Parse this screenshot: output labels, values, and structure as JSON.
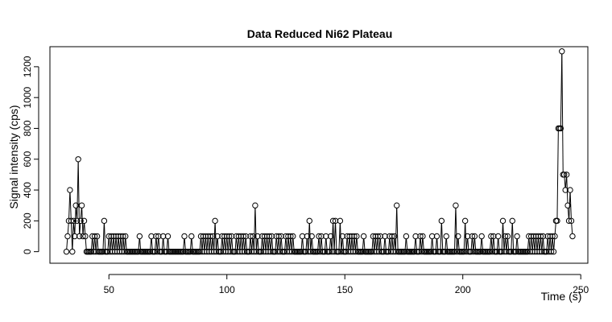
{
  "chart_data": {
    "type": "scatter",
    "title": "Data Reduced Ni62 Plateau",
    "xlabel": "Time (s)",
    "ylabel": "Signal intensity (cps)",
    "xlim": [
      25,
      253
    ],
    "ylim": [
      -75,
      1330
    ],
    "x_ticks": [
      50,
      100,
      150,
      200,
      250
    ],
    "x_tick_labels": [
      "50",
      "100",
      "150",
      "200",
      "250"
    ],
    "y_ticks": [
      0,
      200,
      400,
      600,
      800,
      1000,
      1200
    ],
    "y_tick_labels": [
      "0",
      "200",
      "400",
      "600",
      "800",
      "1000",
      "1200"
    ],
    "grid": false,
    "style": "points with vertical lines (type='b' style trace)",
    "series": [
      {
        "color": "#000000",
        "x_start": 32,
        "x_step": 0.5,
        "baseline_value": 0,
        "end_x": 246.5,
        "peaks": [
          [
            32,
            0
          ],
          [
            32.5,
            100
          ],
          [
            33,
            200
          ],
          [
            33.5,
            400
          ],
          [
            34,
            200
          ],
          [
            34.5,
            0
          ],
          [
            35,
            200
          ],
          [
            35.5,
            100
          ],
          [
            36,
            300
          ],
          [
            36.5,
            200
          ],
          [
            37,
            600
          ],
          [
            37.5,
            100
          ],
          [
            38,
            200
          ],
          [
            38.5,
            300
          ],
          [
            39,
            100
          ],
          [
            39.5,
            200
          ],
          [
            40,
            100
          ],
          [
            40.5,
            0
          ],
          [
            43,
            100
          ],
          [
            44,
            100
          ],
          [
            45,
            100
          ],
          [
            48,
            200
          ],
          [
            50,
            100
          ],
          [
            51,
            100
          ],
          [
            52,
            100
          ],
          [
            53,
            100
          ],
          [
            54,
            100
          ],
          [
            55,
            100
          ],
          [
            56,
            100
          ],
          [
            57,
            100
          ],
          [
            63,
            100
          ],
          [
            68,
            100
          ],
          [
            70,
            100
          ],
          [
            71,
            100
          ],
          [
            73,
            100
          ],
          [
            75,
            100
          ],
          [
            82,
            100
          ],
          [
            85,
            100
          ],
          [
            89,
            100
          ],
          [
            90,
            100
          ],
          [
            91,
            100
          ],
          [
            92,
            100
          ],
          [
            93,
            100
          ],
          [
            94,
            100
          ],
          [
            95,
            200
          ],
          [
            96,
            100
          ],
          [
            98,
            100
          ],
          [
            99,
            100
          ],
          [
            100,
            100
          ],
          [
            101,
            100
          ],
          [
            102,
            100
          ],
          [
            104,
            100
          ],
          [
            105,
            100
          ],
          [
            106,
            100
          ],
          [
            107,
            100
          ],
          [
            108,
            100
          ],
          [
            110,
            100
          ],
          [
            111,
            100
          ],
          [
            112,
            300
          ],
          [
            113,
            100
          ],
          [
            115,
            100
          ],
          [
            116,
            100
          ],
          [
            117,
            100
          ],
          [
            118,
            100
          ],
          [
            119,
            100
          ],
          [
            121,
            100
          ],
          [
            122,
            100
          ],
          [
            123,
            100
          ],
          [
            125,
            100
          ],
          [
            126,
            100
          ],
          [
            127,
            100
          ],
          [
            128,
            100
          ],
          [
            132,
            100
          ],
          [
            134,
            100
          ],
          [
            135,
            200
          ],
          [
            136,
            100
          ],
          [
            139,
            100
          ],
          [
            140,
            100
          ],
          [
            142,
            100
          ],
          [
            144,
            100
          ],
          [
            145,
            200
          ],
          [
            146,
            200
          ],
          [
            148,
            200
          ],
          [
            149,
            100
          ],
          [
            151,
            100
          ],
          [
            152,
            100
          ],
          [
            153,
            100
          ],
          [
            154,
            100
          ],
          [
            155,
            100
          ],
          [
            158,
            100
          ],
          [
            162,
            100
          ],
          [
            163,
            100
          ],
          [
            164,
            100
          ],
          [
            165,
            100
          ],
          [
            167,
            100
          ],
          [
            169,
            100
          ],
          [
            170,
            100
          ],
          [
            171,
            100
          ],
          [
            172,
            300
          ],
          [
            176,
            100
          ],
          [
            180,
            100
          ],
          [
            182,
            100
          ],
          [
            183,
            100
          ],
          [
            187,
            100
          ],
          [
            189,
            100
          ],
          [
            191,
            200
          ],
          [
            193,
            100
          ],
          [
            197,
            300
          ],
          [
            198,
            100
          ],
          [
            201,
            200
          ],
          [
            202,
            100
          ],
          [
            204,
            100
          ],
          [
            205,
            100
          ],
          [
            208,
            100
          ],
          [
            212,
            100
          ],
          [
            213,
            100
          ],
          [
            215,
            100
          ],
          [
            217,
            200
          ],
          [
            218,
            100
          ],
          [
            219,
            100
          ],
          [
            221,
            200
          ],
          [
            223,
            100
          ],
          [
            228,
            100
          ],
          [
            229,
            100
          ],
          [
            230,
            100
          ],
          [
            231,
            100
          ],
          [
            232,
            100
          ],
          [
            233,
            100
          ],
          [
            234,
            100
          ],
          [
            236,
            100
          ],
          [
            237,
            100
          ],
          [
            238,
            100
          ],
          [
            239,
            100
          ],
          [
            239.5,
            200
          ],
          [
            240,
            200
          ],
          [
            240.5,
            800
          ],
          [
            241,
            800
          ],
          [
            241.5,
            800
          ],
          [
            242,
            1300
          ],
          [
            242.5,
            500
          ],
          [
            243,
            500
          ],
          [
            243.5,
            400
          ],
          [
            244,
            500
          ],
          [
            244.5,
            300
          ],
          [
            245,
            200
          ],
          [
            245.5,
            400
          ],
          [
            246,
            200
          ],
          [
            246.5,
            100
          ]
        ]
      }
    ]
  }
}
